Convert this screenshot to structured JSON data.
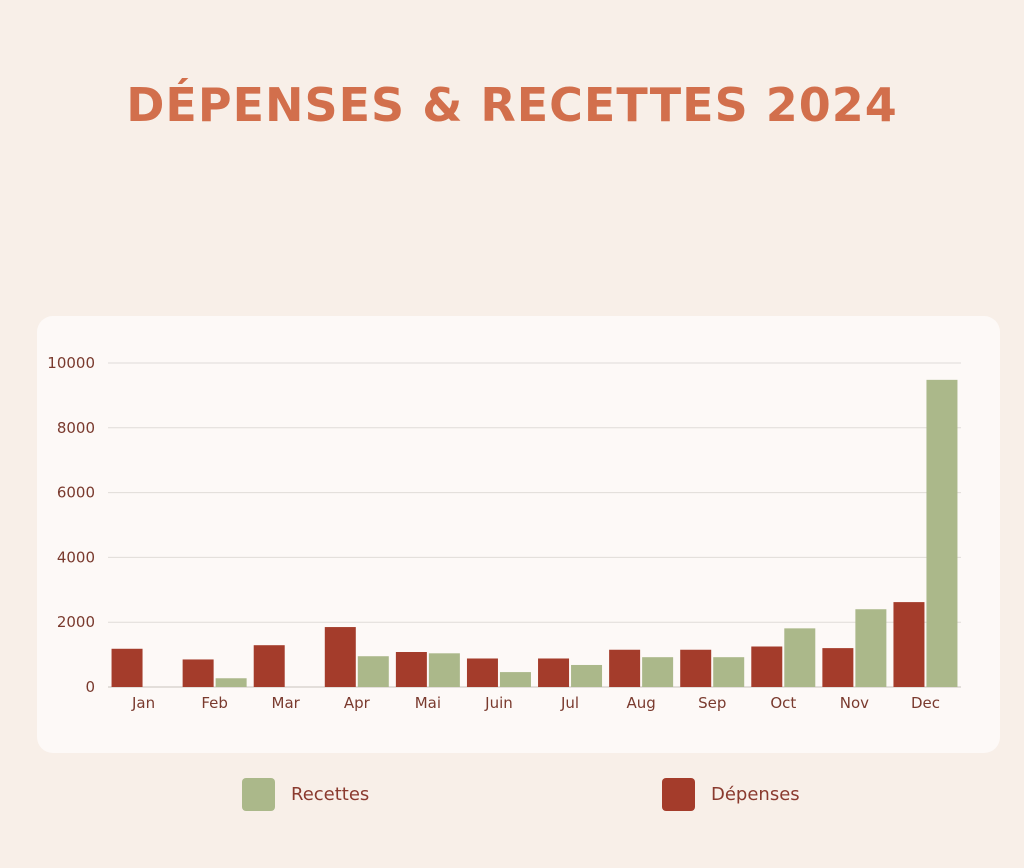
{
  "colors": {
    "recettes": "#abb88a",
    "depenses": "#a43c2b",
    "title": "#d26f4c",
    "axis_text": "#7a3a2e",
    "grid": "#e0dcd8"
  },
  "chart_data": {
    "type": "bar",
    "title": "DÉPENSES & RECETTES 2024",
    "xlabel": "",
    "ylabel": "",
    "ylim": [
      0,
      10000
    ],
    "yticks": [
      0,
      2000,
      4000,
      6000,
      8000,
      10000
    ],
    "grid": true,
    "legend_position": "bottom",
    "categories": [
      "Jan",
      "Feb",
      "Mar",
      "Apr",
      "Mai",
      "Juin",
      "Jul",
      "Aug",
      "Sep",
      "Oct",
      "Nov",
      "Dec"
    ],
    "series": [
      {
        "name": "Dépenses",
        "color": "#a43c2b",
        "values": [
          1180,
          850,
          1290,
          1850,
          1080,
          880,
          880,
          1150,
          1150,
          1250,
          1200,
          2620
        ]
      },
      {
        "name": "Recettes",
        "color": "#abb88a",
        "values": [
          0,
          270,
          0,
          950,
          1040,
          460,
          680,
          920,
          920,
          1810,
          2400,
          9480
        ]
      }
    ]
  },
  "legend": [
    {
      "label": "Recettes",
      "color": "#abb88a"
    },
    {
      "label": "Dépenses",
      "color": "#a43c2b"
    }
  ]
}
